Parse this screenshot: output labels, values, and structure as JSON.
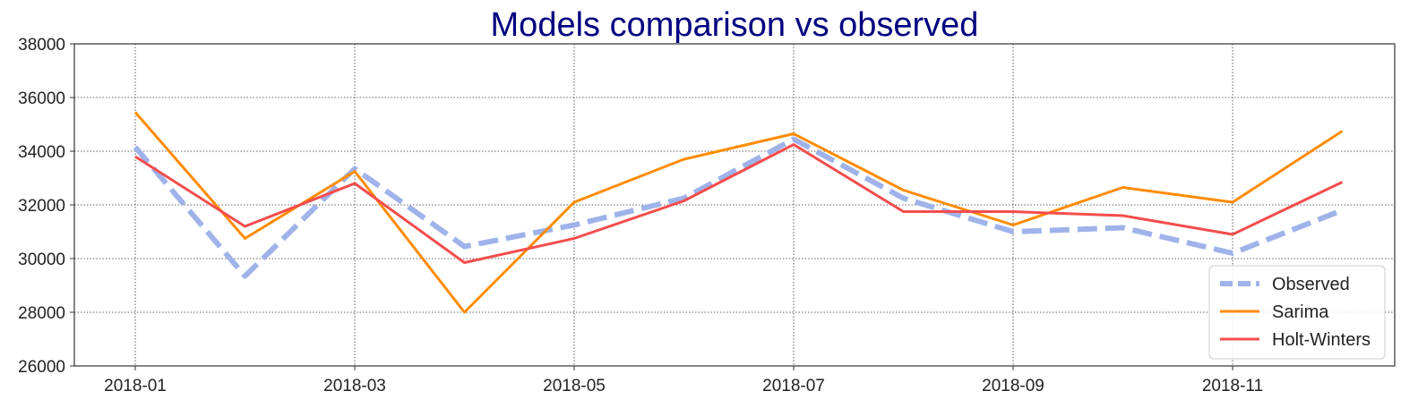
{
  "chart_data": {
    "type": "line",
    "title": "Models comparison vs observed",
    "title_color": "#000080",
    "xlabel": "",
    "ylabel": "",
    "x": [
      "2018-01",
      "2018-02",
      "2018-03",
      "2018-04",
      "2018-05",
      "2018-06",
      "2018-07",
      "2018-08",
      "2018-09",
      "2018-10",
      "2018-11",
      "2018-12"
    ],
    "x_ticks": [
      "2018-01",
      "2018-03",
      "2018-05",
      "2018-07",
      "2018-09",
      "2018-11"
    ],
    "y_ticks": [
      26000,
      28000,
      30000,
      32000,
      34000,
      36000,
      38000
    ],
    "ylim": [
      26000,
      38000
    ],
    "grid": true,
    "legend_position": "lower-right",
    "series": [
      {
        "name": "Observed",
        "color": "#9fb3ea",
        "style": "dashed",
        "values": [
          34150,
          29350,
          33350,
          30450,
          31250,
          32250,
          34450,
          32250,
          31000,
          31150,
          30200,
          31800
        ]
      },
      {
        "name": "Sarima",
        "color": "#ff8c00",
        "style": "solid",
        "values": [
          35450,
          30750,
          33250,
          28000,
          32100,
          33700,
          34650,
          32550,
          31250,
          32650,
          32100,
          34750
        ]
      },
      {
        "name": "Holt-Winters",
        "color": "#f44d4d",
        "style": "solid",
        "values": [
          33800,
          31200,
          32800,
          29850,
          30750,
          32150,
          34250,
          31750,
          31750,
          31600,
          30900,
          32850
        ]
      }
    ]
  }
}
